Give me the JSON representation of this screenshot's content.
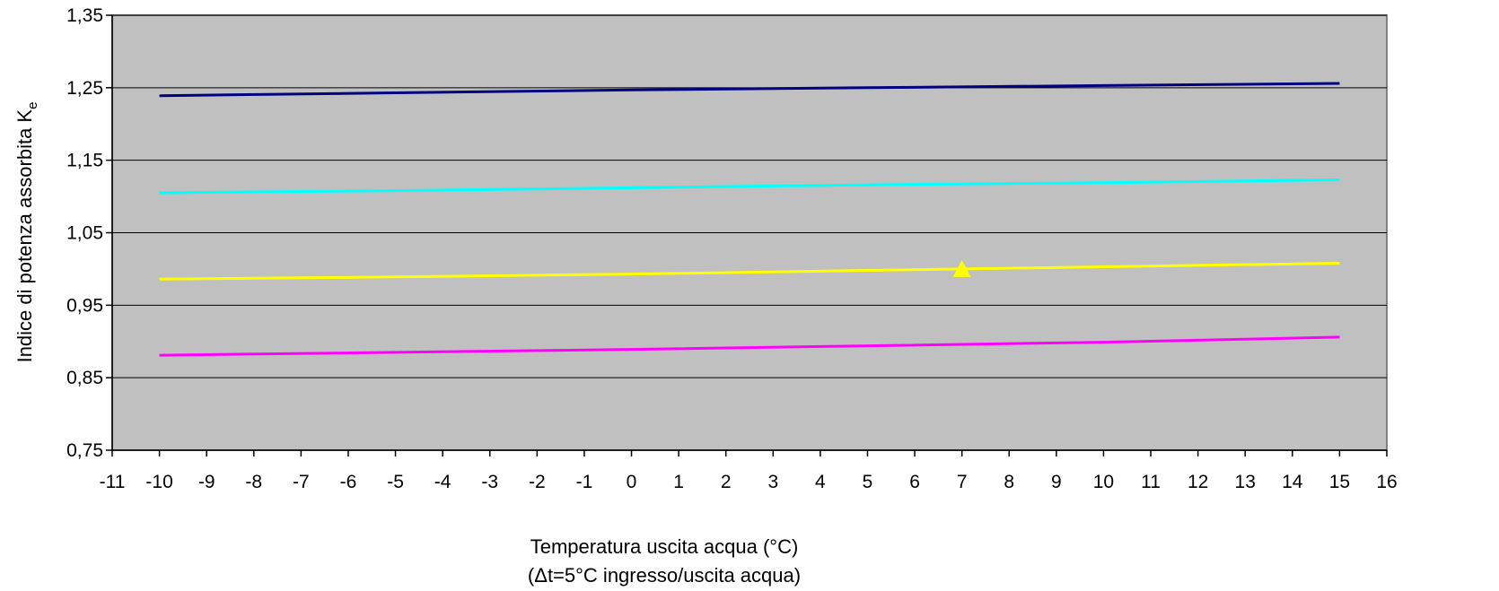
{
  "chart_data": {
    "type": "line",
    "title": "",
    "xlabel": "Temperatura uscita acqua (°C)",
    "xlabel_sub": "(Δt=5°C ingresso/uscita acqua)",
    "ylabel_main": "Indice di potenza assorbita K",
    "ylabel_subscript": "e",
    "xlim": [
      -11,
      16
    ],
    "ylim": [
      0.75,
      1.35
    ],
    "x_ticks": [
      -11,
      -10,
      -9,
      -8,
      -7,
      -6,
      -5,
      -4,
      -3,
      -2,
      -1,
      0,
      1,
      2,
      3,
      4,
      5,
      6,
      7,
      8,
      9,
      10,
      11,
      12,
      13,
      14,
      15,
      16
    ],
    "y_ticks": [
      0.75,
      0.85,
      0.95,
      1.05,
      1.15,
      1.25,
      1.35
    ],
    "y_tick_labels": [
      "0,75",
      "0,85",
      "0,95",
      "1,05",
      "1,15",
      "1,25",
      "1,35"
    ],
    "grid": "horizontal",
    "legend": "none",
    "plot_background": "#c0c0c0",
    "series": [
      {
        "color": "#000080",
        "x": [
          -10,
          -5,
          0,
          5,
          10,
          15
        ],
        "values": [
          1.239,
          1.243,
          1.247,
          1.25,
          1.253,
          1.256
        ]
      },
      {
        "color": "#00ffff",
        "x": [
          -10,
          -5,
          0,
          5,
          10,
          15
        ],
        "values": [
          1.105,
          1.108,
          1.112,
          1.116,
          1.119,
          1.123
        ]
      },
      {
        "color": "#ffff00",
        "x": [
          -10,
          -5,
          0,
          5,
          10,
          15
        ],
        "values": [
          0.986,
          0.989,
          0.993,
          0.998,
          1.003,
          1.008
        ]
      },
      {
        "color": "#ff00ff",
        "x": [
          -10,
          -5,
          0,
          5,
          10,
          15
        ],
        "values": [
          0.881,
          0.885,
          0.889,
          0.894,
          0.899,
          0.906
        ]
      }
    ],
    "markers": [
      {
        "shape": "triangle",
        "color": "#ffff00",
        "x": 7,
        "y": 1.0
      }
    ]
  }
}
